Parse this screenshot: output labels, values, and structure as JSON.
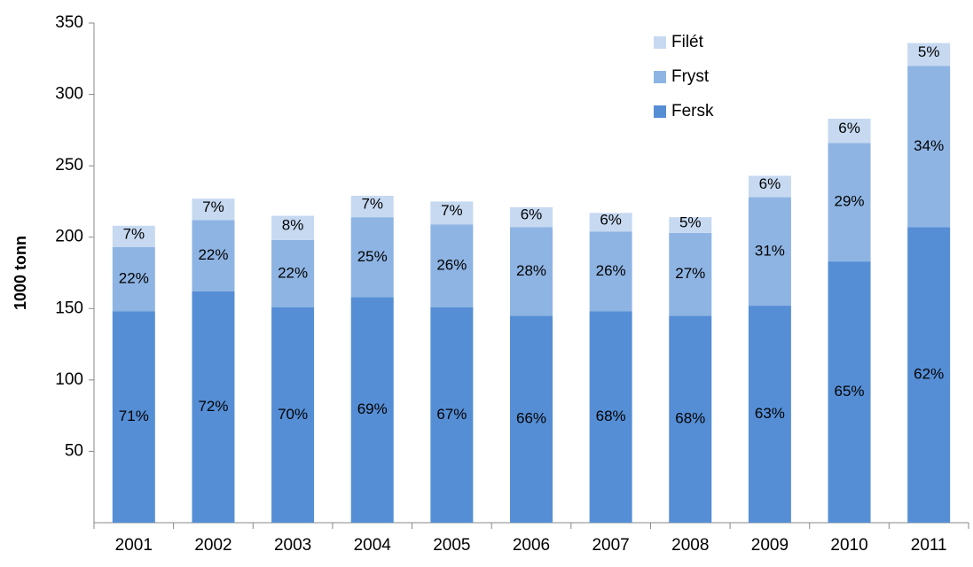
{
  "chart_data": {
    "type": "stacked-bar",
    "y_label": "1000 tonn",
    "categories": [
      "2001",
      "2002",
      "2003",
      "2004",
      "2005",
      "2006",
      "2007",
      "2008",
      "2009",
      "2010",
      "2011"
    ],
    "series": [
      {
        "name": "Fersk",
        "color": "#558ed5",
        "values": [
          148,
          162,
          151,
          158,
          151,
          145,
          148,
          145,
          152,
          183,
          207
        ],
        "share_labels": [
          "71%",
          "72%",
          "70%",
          "69%",
          "67%",
          "66%",
          "68%",
          "68%",
          "63%",
          "65%",
          "62%"
        ]
      },
      {
        "name": "Fryst",
        "color": "#8eb4e3",
        "values": [
          45,
          50,
          47,
          56,
          58,
          62,
          56,
          58,
          76,
          83,
          113
        ],
        "share_labels": [
          "22%",
          "22%",
          "22%",
          "25%",
          "26%",
          "28%",
          "26%",
          "27%",
          "31%",
          "29%",
          "34%"
        ]
      },
      {
        "name": "Filét",
        "color": "#c6d9f1",
        "values": [
          15,
          15,
          17,
          15,
          16,
          14,
          13,
          11,
          15,
          17,
          16
        ],
        "share_labels": [
          "7%",
          "7%",
          "8%",
          "7%",
          "7%",
          "6%",
          "6%",
          "5%",
          "6%",
          "6%",
          "5%"
        ]
      }
    ],
    "ylim": [
      0,
      350
    ],
    "yticks": [
      50,
      100,
      150,
      200,
      250,
      300,
      350
    ],
    "legend": "top-right"
  }
}
